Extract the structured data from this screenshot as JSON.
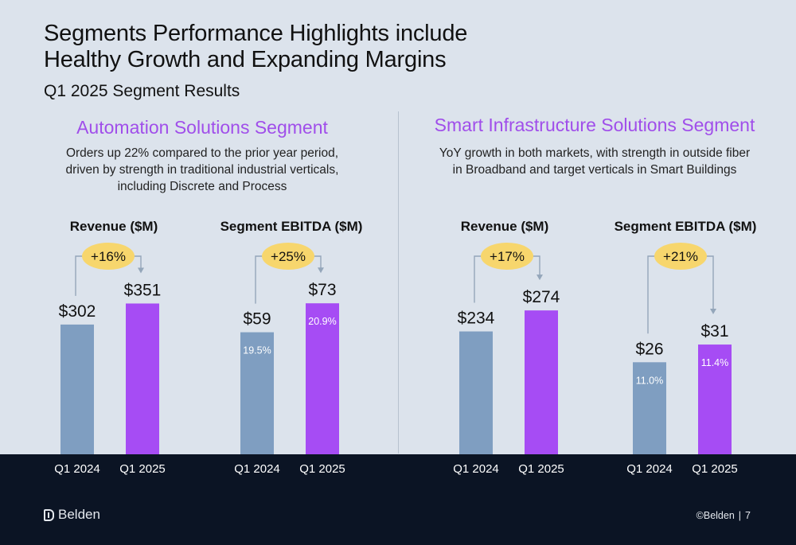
{
  "title_line1": "Segments Performance Highlights include",
  "title_line2": "Healthy Growth and Expanding Margins",
  "subtitle": "Q1 2025 Segment Results",
  "segments": [
    {
      "title": "Automation Solutions Segment",
      "description": "Orders up 22% compared to the prior year period, driven by strength in traditional industrial verticals, including Discrete and Process"
    },
    {
      "title": "Smart Infrastructure Solutions Segment",
      "description": "YoY growth in both markets, with strength in outside fiber in Broadband and target verticals in Smart Buildings"
    }
  ],
  "colors": {
    "prior": "#7f9ec1",
    "current": "#a64cf4",
    "growth_badge": "#f7d66d",
    "footer": "#0b1424",
    "segment_title": "#a04eea"
  },
  "chart_data": [
    {
      "type": "bar",
      "title": "Revenue ($M)",
      "segment": "Automation Solutions Segment",
      "categories": [
        "Q1 2024",
        "Q1 2025"
      ],
      "values": [
        302,
        351
      ],
      "value_labels": [
        "$302",
        "$351"
      ],
      "margins": [
        null,
        null
      ],
      "growth": "+16%"
    },
    {
      "type": "bar",
      "title": "Segment EBITDA ($M)",
      "segment": "Automation Solutions Segment",
      "categories": [
        "Q1 2024",
        "Q1 2025"
      ],
      "values": [
        59,
        73
      ],
      "value_labels": [
        "$59",
        "$73"
      ],
      "margins": [
        "19.5%",
        "20.9%"
      ],
      "growth": "+25%"
    },
    {
      "type": "bar",
      "title": "Revenue ($M)",
      "segment": "Smart Infrastructure Solutions Segment",
      "categories": [
        "Q1 2024",
        "Q1 2025"
      ],
      "values": [
        234,
        274
      ],
      "value_labels": [
        "$234",
        "$274"
      ],
      "margins": [
        null,
        null
      ],
      "growth": "+17%"
    },
    {
      "type": "bar",
      "title": "Segment EBITDA ($M)",
      "segment": "Smart Infrastructure Solutions Segment",
      "categories": [
        "Q1 2024",
        "Q1 2025"
      ],
      "values": [
        26,
        31
      ],
      "value_labels": [
        "$26",
        "$31"
      ],
      "margins": [
        "11.0%",
        "11.4%"
      ],
      "growth": "+21%"
    }
  ],
  "footer": {
    "brand": "Belden",
    "copyright": "©Belden",
    "separator": "|",
    "page_number": "7"
  }
}
